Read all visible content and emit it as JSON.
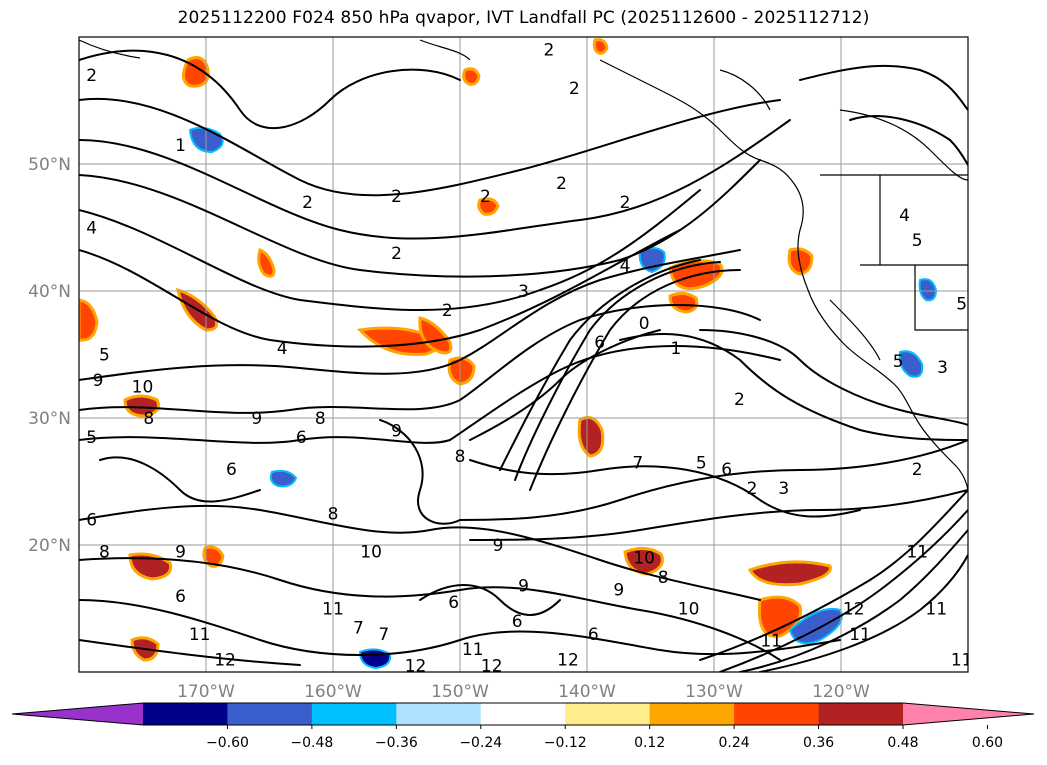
{
  "title": "2025112200 F024 850 hPa qvapor, IVT Landfall PC (2025112600 - 2025112712)",
  "map": {
    "lon_range": [
      -180,
      -110
    ],
    "lat_range": [
      10,
      60
    ],
    "lat_labels": [
      {
        "lat": 50,
        "label": "50°N"
      },
      {
        "lat": 40,
        "label": "40°N"
      },
      {
        "lat": 30,
        "label": "30°N"
      },
      {
        "lat": 20,
        "label": "20°N"
      }
    ],
    "lon_labels": [
      {
        "lon": -170,
        "label": "170°W"
      },
      {
        "lon": -160,
        "label": "160°W"
      },
      {
        "lon": -150,
        "label": "150°W"
      },
      {
        "lon": -140,
        "label": "140°W"
      },
      {
        "lon": -130,
        "label": "130°W"
      },
      {
        "lon": -120,
        "label": "120°W"
      }
    ],
    "grid": true,
    "contour_labels": [
      {
        "text": "2",
        "lon": -179,
        "lat": 57
      },
      {
        "text": "2",
        "lon": -143,
        "lat": 59
      },
      {
        "text": "2",
        "lon": -141,
        "lat": 56
      },
      {
        "text": "1",
        "lon": -172,
        "lat": 51.5
      },
      {
        "text": "2",
        "lon": -162,
        "lat": 47
      },
      {
        "text": "2",
        "lon": -155,
        "lat": 47.5
      },
      {
        "text": "2",
        "lon": -148,
        "lat": 47.5
      },
      {
        "text": "2",
        "lon": -142,
        "lat": 48.5
      },
      {
        "text": "2",
        "lon": -137,
        "lat": 47
      },
      {
        "text": "2",
        "lon": -155,
        "lat": 43
      },
      {
        "text": "4",
        "lon": -179,
        "lat": 45
      },
      {
        "text": "4",
        "lon": -137,
        "lat": 42
      },
      {
        "text": "3",
        "lon": -145,
        "lat": 40
      },
      {
        "text": "2",
        "lon": -151,
        "lat": 38.5
      },
      {
        "text": "0",
        "lon": -135.5,
        "lat": 37.5
      },
      {
        "text": "4",
        "lon": -164,
        "lat": 35.5
      },
      {
        "text": "6",
        "lon": -139,
        "lat": 36
      },
      {
        "text": "1",
        "lon": -133,
        "lat": 35.5
      },
      {
        "text": "5",
        "lon": -178,
        "lat": 35
      },
      {
        "text": "9",
        "lon": -178.5,
        "lat": 33
      },
      {
        "text": "10",
        "lon": -175,
        "lat": 32.5
      },
      {
        "text": "2",
        "lon": -128,
        "lat": 31.5
      },
      {
        "text": "9",
        "lon": -166,
        "lat": 30
      },
      {
        "text": "8",
        "lon": -161,
        "lat": 30
      },
      {
        "text": "9",
        "lon": -155,
        "lat": 29
      },
      {
        "text": "6",
        "lon": -162.5,
        "lat": 28.5
      },
      {
        "text": "8",
        "lon": -174.5,
        "lat": 30
      },
      {
        "text": "5",
        "lon": -179,
        "lat": 28.5
      },
      {
        "text": "8",
        "lon": -150,
        "lat": 27
      },
      {
        "text": "7",
        "lon": -136,
        "lat": 26.5
      },
      {
        "text": "5",
        "lon": -131,
        "lat": 26.5
      },
      {
        "text": "6",
        "lon": -129,
        "lat": 26
      },
      {
        "text": "2",
        "lon": -127,
        "lat": 24.5
      },
      {
        "text": "3",
        "lon": -124.5,
        "lat": 24.5
      },
      {
        "text": "6",
        "lon": -168,
        "lat": 26
      },
      {
        "text": "8",
        "lon": -160,
        "lat": 22.5
      },
      {
        "text": "2",
        "lon": -114,
        "lat": 26
      },
      {
        "text": "6",
        "lon": -179,
        "lat": 22
      },
      {
        "text": "8",
        "lon": -178,
        "lat": 19.5
      },
      {
        "text": "9",
        "lon": -172,
        "lat": 19.5
      },
      {
        "text": "10",
        "lon": -157,
        "lat": 19.5
      },
      {
        "text": "9",
        "lon": -147,
        "lat": 20
      },
      {
        "text": "10",
        "lon": -135.5,
        "lat": 19
      },
      {
        "text": "8",
        "lon": -134,
        "lat": 17.5
      },
      {
        "text": "9",
        "lon": -137.5,
        "lat": 16.5
      },
      {
        "text": "9",
        "lon": -145,
        "lat": 16.8
      },
      {
        "text": "6",
        "lon": -172,
        "lat": 16
      },
      {
        "text": "6",
        "lon": -150.5,
        "lat": 15.5
      },
      {
        "text": "10",
        "lon": -132,
        "lat": 15
      },
      {
        "text": "11",
        "lon": -114,
        "lat": 19.5
      },
      {
        "text": "12",
        "lon": -119,
        "lat": 15
      },
      {
        "text": "11",
        "lon": -118.5,
        "lat": 13
      },
      {
        "text": "11",
        "lon": -160,
        "lat": 15
      },
      {
        "text": "7",
        "lon": -158,
        "lat": 13.5
      },
      {
        "text": "7",
        "lon": -156,
        "lat": 13
      },
      {
        "text": "6",
        "lon": -145.5,
        "lat": 14
      },
      {
        "text": "6",
        "lon": -139.5,
        "lat": 13
      },
      {
        "text": "11",
        "lon": -170.5,
        "lat": 13
      },
      {
        "text": "12",
        "lon": -168.5,
        "lat": 11
      },
      {
        "text": "11",
        "lon": -149,
        "lat": 11.8
      },
      {
        "text": "12",
        "lon": -153.5,
        "lat": 10.5
      },
      {
        "text": "12",
        "lon": -147.5,
        "lat": 10.5
      },
      {
        "text": "12",
        "lon": -141.5,
        "lat": 11
      },
      {
        "text": "11",
        "lon": -110.5,
        "lat": 11
      },
      {
        "text": "11",
        "lon": -112.5,
        "lat": 15
      },
      {
        "text": "11",
        "lon": -125.5,
        "lat": 12.5
      },
      {
        "text": "4",
        "lon": -115,
        "lat": 46
      },
      {
        "text": "5",
        "lon": -114,
        "lat": 44
      },
      {
        "text": "5",
        "lon": -110.5,
        "lat": 39
      },
      {
        "text": "5",
        "lon": -115.5,
        "lat": 34.5
      },
      {
        "text": "3",
        "lon": -112,
        "lat": 34
      }
    ]
  },
  "colorbar": {
    "label_values": [
      "−0.60",
      "−0.48",
      "−0.36",
      "−0.24",
      "−0.12",
      "0.12",
      "0.24",
      "0.36",
      "0.48",
      "0.60"
    ],
    "colors": [
      "#9932cc",
      "#00008b",
      "#3a5fcd",
      "#00bfff",
      "#b0e2ff",
      "#ffffff",
      "#ffec8b",
      "#ffa500",
      "#ff4500",
      "#b22222",
      "#ff82ab"
    ]
  }
}
